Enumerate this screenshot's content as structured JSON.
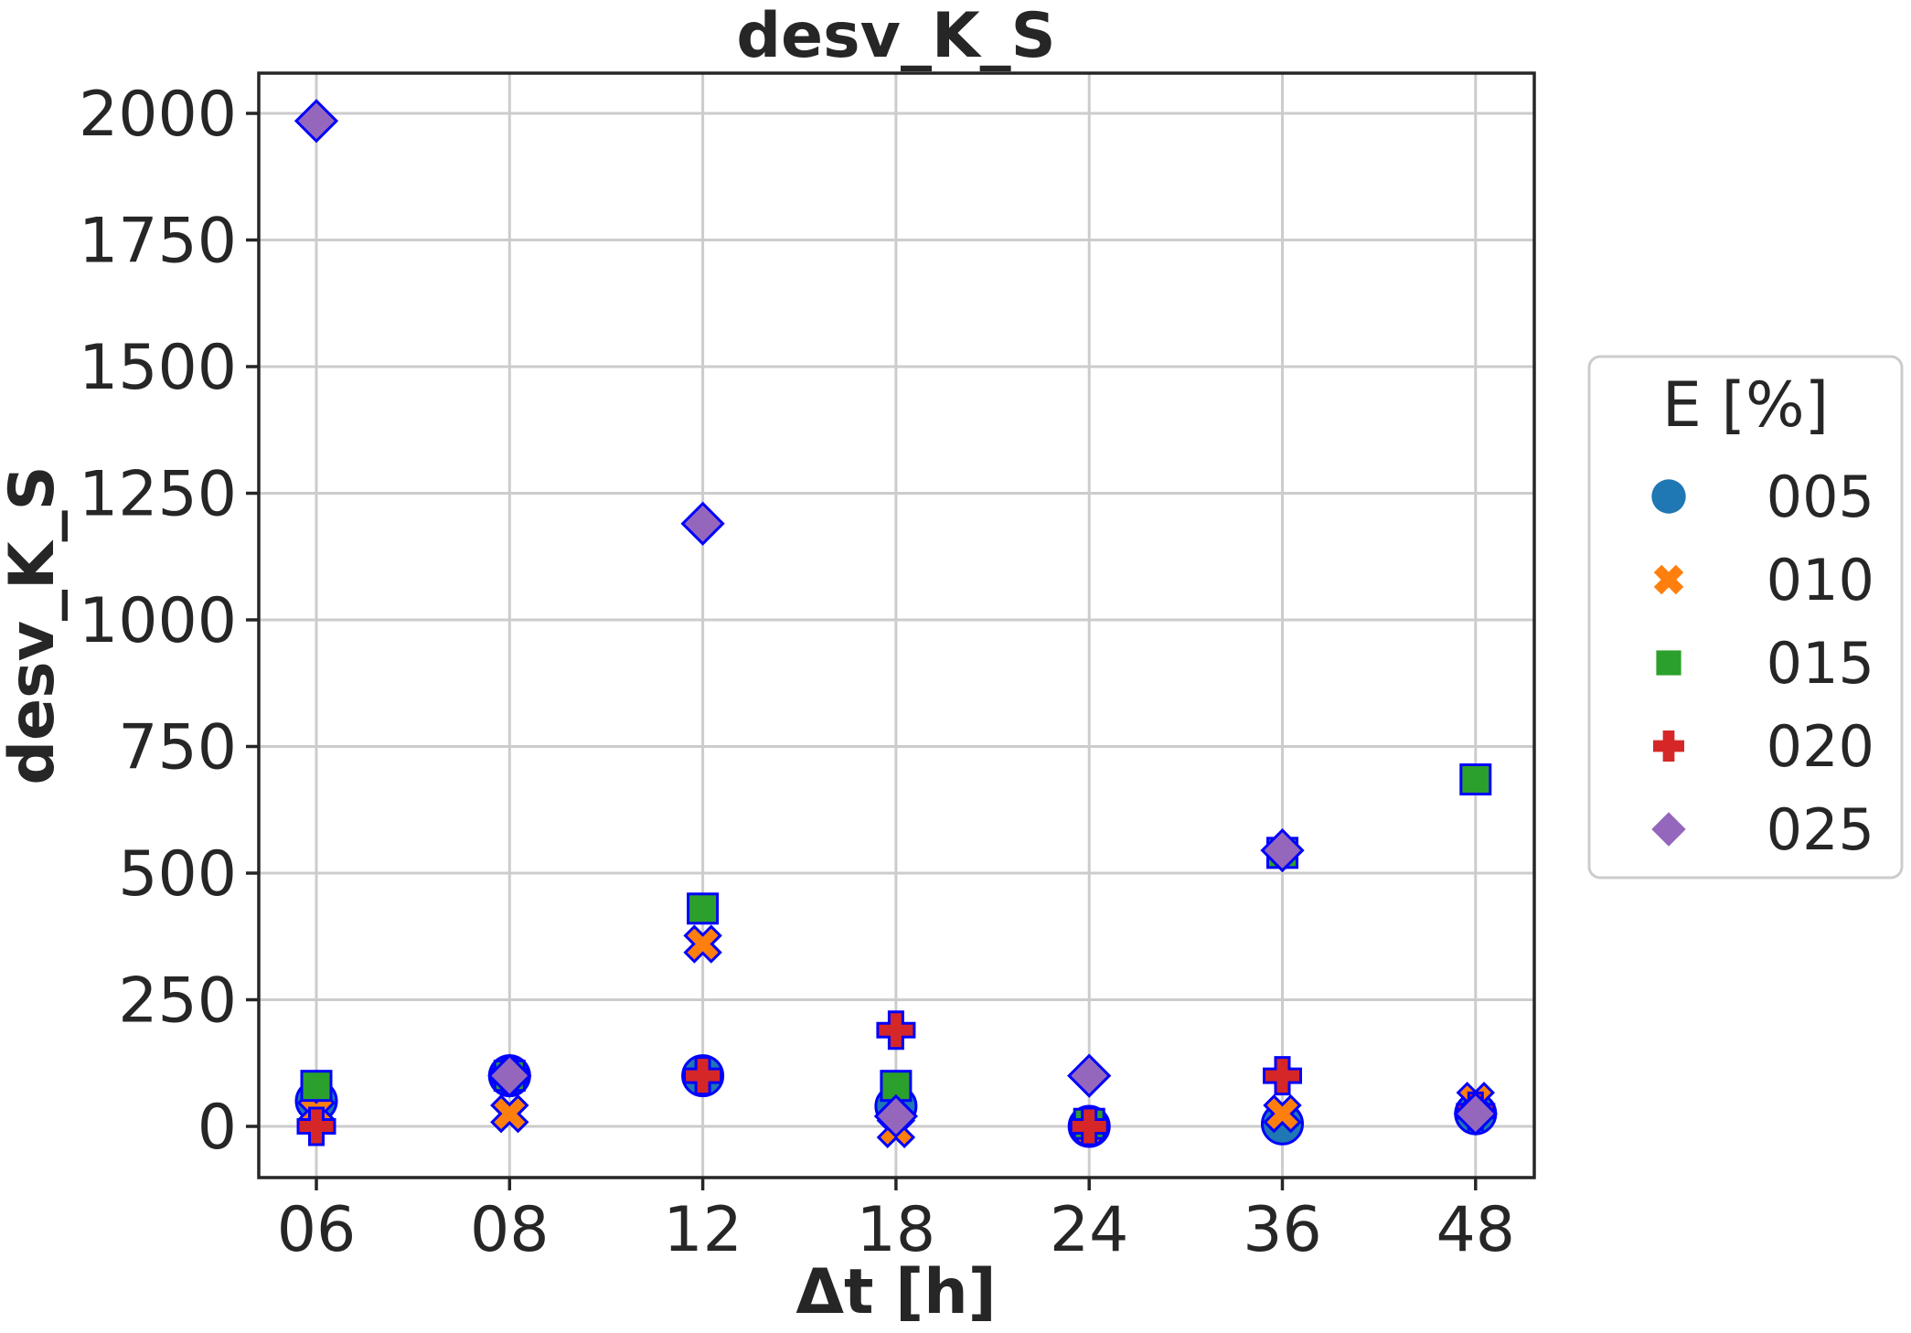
{
  "chart_data": {
    "type": "scatter",
    "title": "desv_K_S",
    "xlabel": "Δt [h]",
    "ylabel": "desv_K_S",
    "categories": [
      "06",
      "08",
      "12",
      "18",
      "24",
      "36",
      "48"
    ],
    "ylim": [
      -100,
      2080
    ],
    "yticks": [
      0,
      250,
      500,
      750,
      1000,
      1250,
      1500,
      1750,
      2000
    ],
    "grid": true,
    "legend": {
      "title": "E [%]",
      "placement": "outside-right"
    },
    "marker_edge_color": "#0000ff",
    "series": [
      {
        "name": "005",
        "marker": "circle",
        "color": "#1f77b4",
        "values": [
          50,
          100,
          100,
          40,
          0,
          5,
          25
        ]
      },
      {
        "name": "010",
        "marker": "x",
        "color": "#ff7f0e",
        "values": [
          30,
          25,
          360,
          -5,
          0,
          25,
          50
        ]
      },
      {
        "name": "015",
        "marker": "square",
        "color": "#2ca02c",
        "values": [
          80,
          100,
          430,
          80,
          5,
          540,
          685
        ]
      },
      {
        "name": "020",
        "marker": "plus",
        "color": "#d62728",
        "values": [
          0,
          100,
          100,
          190,
          0,
          100,
          30
        ]
      },
      {
        "name": "025",
        "marker": "diamond",
        "color": "#9467bd",
        "values": [
          1985,
          100,
          1190,
          20,
          100,
          545,
          25
        ]
      }
    ]
  }
}
